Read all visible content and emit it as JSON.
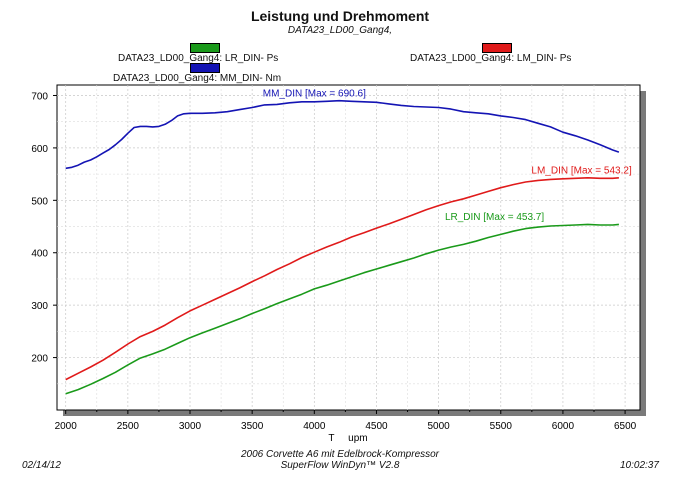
{
  "header": {
    "title": "Leistung und Drehmoment",
    "subtitle": "DATA23_LD00_Gang4,"
  },
  "legend": {
    "items": [
      {
        "label": "DATA23_LD00_Gang4: LR_DIN-  Ps",
        "color": "#1a9a1a"
      },
      {
        "label": "DATA23_LD00_Gang4: LM_DIN-  Ps",
        "color": "#e01a1a"
      },
      {
        "label": "DATA23_LD00_Gang4: MM_DIN-  Nm",
        "color": "#1414b4"
      }
    ]
  },
  "footer": {
    "line1": "2006 Corvette A6 mit Edelbrock-Kompressor",
    "line2": "SuperFlow WinDyn™ V2.8",
    "date": "02/14/12",
    "time": "10:02:37"
  },
  "chart_data": {
    "type": "line",
    "xlabel": "T     upm",
    "ylabel": "",
    "xlim": [
      1930,
      6620
    ],
    "ylim": [
      100,
      720
    ],
    "xticks": [
      2000,
      2500,
      3000,
      3500,
      4000,
      4500,
      5000,
      5500,
      6000,
      6500
    ],
    "yticks": [
      200,
      300,
      400,
      500,
      600,
      700
    ],
    "grid": true,
    "series": [
      {
        "name": "MM_DIN",
        "label": "MM_DIN [Max = 690.6]",
        "color": "#1414b4",
        "x": [
          2000,
          2050,
          2100,
          2150,
          2200,
          2250,
          2300,
          2350,
          2400,
          2450,
          2500,
          2550,
          2600,
          2650,
          2700,
          2750,
          2800,
          2850,
          2900,
          2950,
          3000,
          3100,
          3200,
          3300,
          3400,
          3500,
          3600,
          3700,
          3800,
          3900,
          4000,
          4100,
          4200,
          4300,
          4400,
          4500,
          4600,
          4700,
          4800,
          4900,
          5000,
          5100,
          5200,
          5300,
          5400,
          5500,
          5600,
          5700,
          5800,
          5900,
          6000,
          6100,
          6200,
          6300,
          6400,
          6450
        ],
        "y": [
          561,
          563,
          567,
          573,
          577,
          583,
          590,
          597,
          606,
          616,
          628,
          639,
          641,
          641,
          640,
          641,
          645,
          652,
          661,
          665,
          666,
          666,
          667,
          669,
          673,
          677,
          682,
          683,
          686,
          688,
          688,
          689,
          690,
          689,
          688,
          687,
          684,
          681,
          679,
          678,
          677,
          674,
          669,
          667,
          665,
          661,
          658,
          654,
          647,
          640,
          630,
          623,
          615,
          606,
          596,
          592
        ]
      },
      {
        "name": "LM_DIN",
        "label": "LM_DIN [Max = 543.2]",
        "color": "#e01a1a",
        "x": [
          2000,
          2100,
          2200,
          2300,
          2400,
          2500,
          2600,
          2700,
          2800,
          2900,
          3000,
          3100,
          3200,
          3300,
          3400,
          3500,
          3600,
          3700,
          3800,
          3900,
          4000,
          4100,
          4200,
          4300,
          4400,
          4500,
          4600,
          4700,
          4800,
          4900,
          5000,
          5100,
          5200,
          5300,
          5400,
          5500,
          5600,
          5700,
          5800,
          5900,
          6000,
          6100,
          6200,
          6300,
          6400,
          6450
        ],
        "y": [
          158,
          170,
          182,
          195,
          210,
          226,
          240,
          250,
          262,
          276,
          289,
          300,
          311,
          322,
          333,
          345,
          356,
          368,
          379,
          391,
          401,
          411,
          420,
          430,
          438,
          447,
          455,
          464,
          473,
          482,
          490,
          497,
          503,
          510,
          517,
          524,
          530,
          535,
          538,
          540,
          541,
          542,
          543,
          542,
          542,
          543
        ]
      },
      {
        "name": "LR_DIN",
        "label": "LR_DIN [Max = 453.7]",
        "color": "#1a9a1a",
        "x": [
          2000,
          2100,
          2200,
          2300,
          2400,
          2500,
          2600,
          2700,
          2800,
          2900,
          3000,
          3100,
          3200,
          3300,
          3400,
          3500,
          3600,
          3700,
          3800,
          3900,
          4000,
          4100,
          4200,
          4300,
          4400,
          4500,
          4600,
          4700,
          4800,
          4900,
          5000,
          5100,
          5200,
          5300,
          5400,
          5500,
          5600,
          5700,
          5800,
          5900,
          6000,
          6100,
          6200,
          6300,
          6400,
          6450
        ],
        "y": [
          131,
          139,
          149,
          160,
          172,
          186,
          199,
          207,
          216,
          227,
          238,
          247,
          256,
          265,
          274,
          284,
          293,
          303,
          312,
          321,
          331,
          338,
          346,
          354,
          362,
          369,
          376,
          383,
          390,
          398,
          405,
          411,
          416,
          422,
          429,
          435,
          441,
          446,
          449,
          451,
          452,
          453,
          454,
          453,
          453,
          454
        ]
      }
    ]
  }
}
